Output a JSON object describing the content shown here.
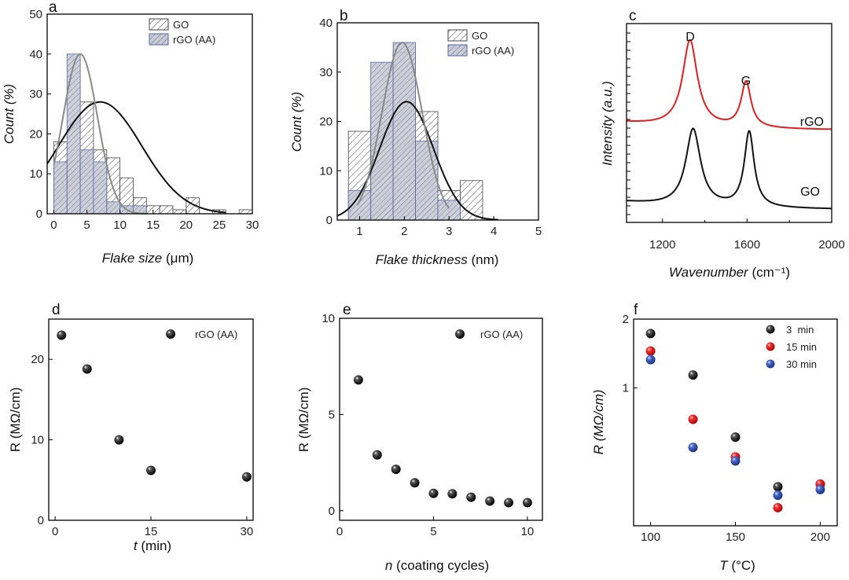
{
  "chart_data": [
    {
      "panel": "a",
      "type": "bar",
      "x": [
        0,
        2,
        4,
        6,
        8,
        10,
        12,
        14,
        16,
        18,
        20,
        22,
        24,
        26,
        28
      ],
      "bin_width": 2,
      "series": [
        {
          "name": "GO",
          "values": [
            18,
            13,
            28,
            16,
            14,
            9,
            4,
            2,
            2,
            1,
            4,
            0,
            1,
            0,
            1
          ],
          "pattern": "hatch-white"
        },
        {
          "name": "rGO (AA)",
          "values": [
            13,
            40,
            16,
            13,
            3,
            2,
            2,
            0,
            0,
            0,
            0,
            0,
            0,
            0,
            0
          ],
          "pattern": "hatch-blue"
        }
      ],
      "fits": [
        {
          "name": "GO fit",
          "type": "gaussian",
          "mean": 7,
          "sigma": 6.3,
          "peak": 28,
          "color": "#111111"
        },
        {
          "name": "rGO (AA) fit",
          "type": "gaussian",
          "mean": 4,
          "sigma": 2.6,
          "peak": 40,
          "color": "#8a8a8a"
        }
      ],
      "xlabel": "Flake size",
      "xunit": "(μm)",
      "ylabel": "Count (%)",
      "xlim": [
        -1,
        30
      ],
      "ylim": [
        0,
        50
      ],
      "xticks": [
        0,
        5,
        10,
        15,
        20,
        25,
        30
      ],
      "yticks": [
        0,
        10,
        20,
        30,
        40,
        50
      ],
      "legend": "top-right"
    },
    {
      "panel": "b",
      "type": "bar",
      "x": [
        1,
        1.5,
        2,
        2.5,
        3,
        3.5
      ],
      "bin_width": 0.5,
      "series": [
        {
          "name": "GO",
          "values": [
            18,
            24,
            34,
            22,
            6,
            8
          ],
          "pattern": "hatch-white"
        },
        {
          "name": "rGO (AA)",
          "values": [
            6,
            32,
            36,
            16,
            4,
            0
          ],
          "pattern": "hatch-blue"
        }
      ],
      "fits": [
        {
          "name": "GO fit",
          "type": "gaussian",
          "mean": 2.05,
          "sigma": 0.6,
          "peak": 24,
          "color": "#111111"
        },
        {
          "name": "rGO (AA) fit",
          "type": "gaussian",
          "mean": 1.95,
          "sigma": 0.45,
          "peak": 36,
          "color": "#8a8a8a"
        }
      ],
      "xlabel": "Flake thickness",
      "xunit": "(nm)",
      "ylabel": "Count (%)",
      "xlim": [
        0.5,
        5
      ],
      "ylim": [
        0,
        40
      ],
      "xticks": [
        1,
        2,
        3,
        4,
        5
      ],
      "yticks": [
        0,
        10,
        20,
        30,
        40
      ],
      "legend": "top-right"
    },
    {
      "panel": "c",
      "type": "line",
      "series": [
        {
          "name": "rGO",
          "color": "#e02020",
          "peaks": [
            {
              "label": "D",
              "center": 1330
            },
            {
              "label": "G",
              "center": 1595
            }
          ]
        },
        {
          "name": "GO",
          "color": "#111111",
          "peaks": [
            {
              "center": 1345
            },
            {
              "center": 1610
            }
          ]
        }
      ],
      "peak_labels": [
        "D",
        "G"
      ],
      "xlabel": "Wavenumber",
      "xunit": "(cm⁻¹)",
      "ylabel": "Intensity (a.u.)",
      "xlim": [
        1030,
        2000
      ],
      "xticks": [
        1200,
        1600,
        2000
      ]
    },
    {
      "panel": "d",
      "type": "scatter",
      "x": [
        1,
        5,
        10,
        15,
        30
      ],
      "series": [
        {
          "name": "rGO (AA)",
          "values": [
            23,
            18.8,
            10,
            6.2,
            5.4
          ],
          "color": "#111111"
        }
      ],
      "xlabel": "t",
      "xunit": "(min)",
      "ylabel": "R (MΩ/cm)",
      "xlim": [
        -1,
        31
      ],
      "ylim": [
        0,
        25
      ],
      "xticks": [
        0,
        15,
        30
      ],
      "yticks": [
        0,
        10,
        20
      ],
      "legend": "top-right"
    },
    {
      "panel": "e",
      "type": "scatter",
      "x": [
        1,
        2,
        3,
        4,
        5,
        6,
        7,
        8,
        9,
        10
      ],
      "series": [
        {
          "name": "rGO (AA)",
          "values": [
            6.8,
            2.9,
            2.15,
            1.45,
            0.9,
            0.88,
            0.7,
            0.5,
            0.42,
            0.42
          ],
          "color": "#111111"
        }
      ],
      "xlabel": "n",
      "xunit": "(coating cycles)",
      "ylabel": "R (MΩ/cm)",
      "xlim": [
        0,
        10.8
      ],
      "ylim": [
        -0.5,
        10
      ],
      "xticks": [
        0,
        5,
        10
      ],
      "yticks": [
        0,
        5,
        10
      ],
      "legend": "top-right"
    },
    {
      "panel": "f",
      "type": "scatter",
      "yscale": "log",
      "x": [
        100,
        125,
        150,
        175,
        200
      ],
      "series": [
        {
          "name": "3  min",
          "values": [
            1.73,
            1.14,
            0.61,
            0.37,
            0.38
          ],
          "color": "#111111"
        },
        {
          "name": "15 min",
          "values": [
            1.45,
            0.73,
            0.5,
            0.3,
            0.38
          ],
          "color": "#e02020"
        },
        {
          "name": "30 min",
          "values": [
            1.33,
            0.55,
            0.48,
            0.34,
            0.36
          ],
          "color": "#3050b0"
        }
      ],
      "xlabel": "T",
      "xunit": "(°C)",
      "ylabel": "R (MΩ/cm)",
      "xlim": [
        90,
        210
      ],
      "ylim": [
        0.25,
        2
      ],
      "xticks": [
        100,
        150,
        200
      ],
      "yticks": [
        1,
        2
      ],
      "legend": "top-right"
    }
  ]
}
